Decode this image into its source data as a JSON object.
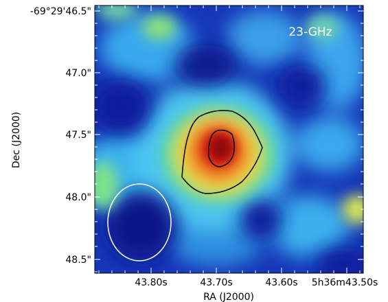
{
  "image": {
    "frequency_label": "23-GHz",
    "x_axis_label": "RA (J2000)",
    "y_axis_label": "Dec (J2000)",
    "y_ticks": [
      "-69°29'46.5\"",
      "47.0\"",
      "47.5\"",
      "48.0\"",
      "48.5\""
    ],
    "x_ticks": [
      "43.80s",
      "43.70s",
      "43.60s",
      "5h36m43.50s"
    ],
    "colormap": "jet",
    "contour_color": "#000000",
    "beam_color": "#ffffff"
  }
}
